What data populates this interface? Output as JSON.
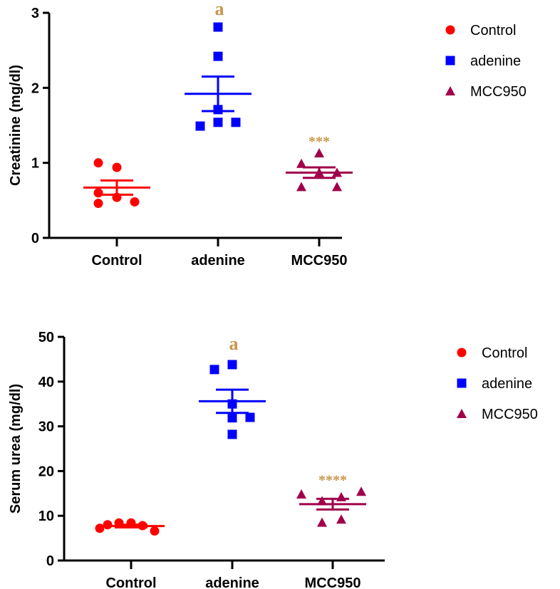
{
  "chart_data": [
    {
      "type": "scatter",
      "title": "",
      "ylabel": "Creatinine (mg/dl)",
      "xlabel": "",
      "ylim": [
        0,
        3
      ],
      "yticks": [
        0,
        1,
        2,
        3
      ],
      "categories": [
        "Control",
        "adenine",
        "MCC950"
      ],
      "series": [
        {
          "name": "Control",
          "color": "#ff0000",
          "marker": "circle",
          "values": [
            1.0,
            0.94,
            0.6,
            0.46,
            0.54,
            0.48
          ],
          "mean": 0.67,
          "sem": 0.095,
          "annotation": ""
        },
        {
          "name": "adenine",
          "color": "#0000ff",
          "marker": "square",
          "values": [
            2.81,
            2.42,
            1.71,
            1.49,
            1.54,
            1.54
          ],
          "mean": 1.92,
          "sem": 0.23,
          "annotation": "a"
        },
        {
          "name": "MCC950",
          "color": "#a0004a",
          "marker": "triangle",
          "values": [
            0.99,
            1.13,
            0.68,
            0.87,
            0.68,
            0.87
          ],
          "mean": 0.87,
          "sem": 0.07,
          "annotation": "***"
        }
      ],
      "legend": "top-right"
    },
    {
      "type": "scatter",
      "title": "",
      "ylabel": "Serum urea (mg/dl)",
      "xlabel": "",
      "ylim": [
        0,
        50
      ],
      "yticks": [
        0,
        10,
        20,
        30,
        40,
        50
      ],
      "categories": [
        "Control",
        "adenine",
        "MCC950"
      ],
      "series": [
        {
          "name": "Control",
          "color": "#ff0000",
          "marker": "circle",
          "values": [
            7.2,
            8.4,
            7.8,
            8.4,
            6.6,
            8.0
          ],
          "mean": 7.7,
          "sem": 0.3,
          "annotation": ""
        },
        {
          "name": "adenine",
          "color": "#0000ff",
          "marker": "square",
          "values": [
            42.7,
            43.8,
            35.0,
            31.9,
            32.0,
            28.2
          ],
          "mean": 35.6,
          "sem": 2.6,
          "annotation": "a"
        },
        {
          "name": "MCC950",
          "color": "#a0004a",
          "marker": "triangle",
          "values": [
            14.8,
            13.3,
            8.5,
            14.2,
            9.2,
            15.4
          ],
          "mean": 12.6,
          "sem": 1.2,
          "annotation": "****"
        }
      ],
      "legend": "top-right"
    }
  ]
}
